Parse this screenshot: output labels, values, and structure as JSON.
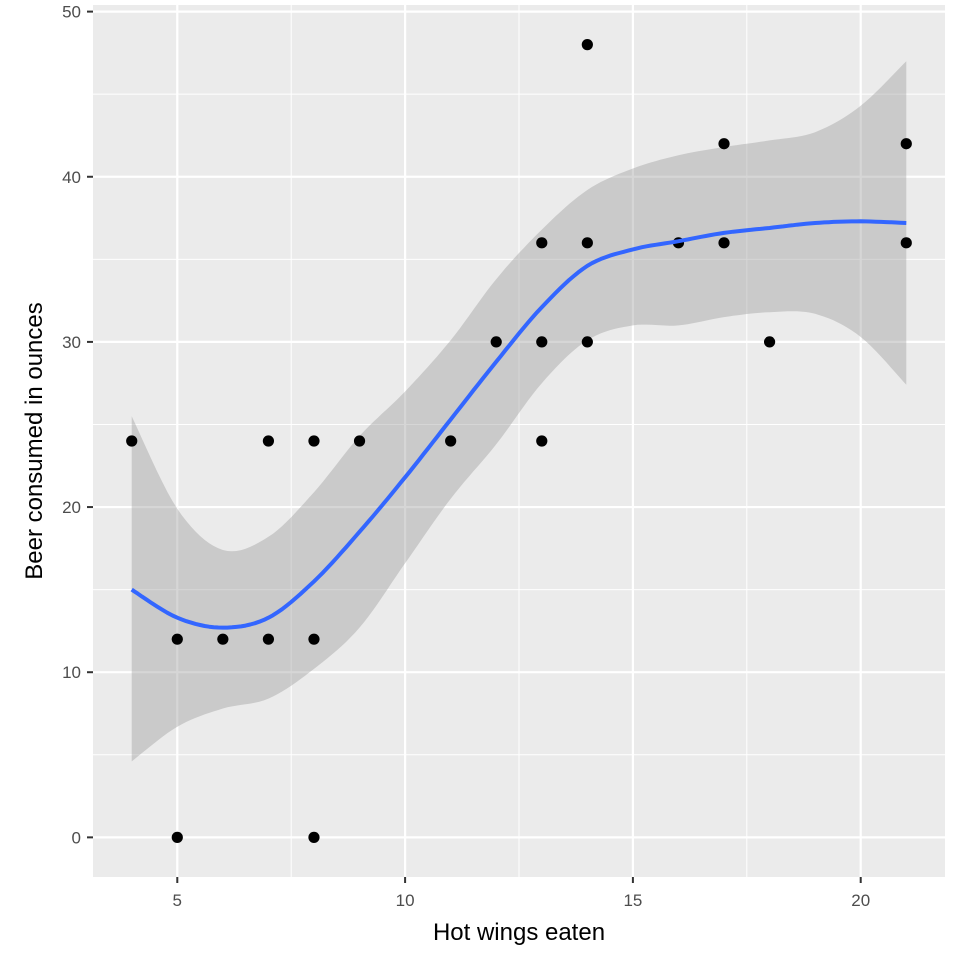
{
  "chart_data": {
    "type": "scatter",
    "title": "",
    "xlabel": "Hot wings eaten",
    "ylabel": "Beer consumed in ounces",
    "xlim": [
      3.15,
      21.85
    ],
    "ylim": [
      -2.4,
      50.4
    ],
    "x_ticks": [
      5,
      10,
      15,
      20
    ],
    "y_ticks": [
      0,
      10,
      20,
      30,
      40,
      50
    ],
    "x_tick_labels": [
      "5",
      "10",
      "15",
      "20"
    ],
    "y_tick_labels": [
      "0",
      "10",
      "20",
      "30",
      "40",
      "50"
    ],
    "grid": true,
    "panel_background": "#ebebeb",
    "grid_color": "#ffffff",
    "point_color": "#000000",
    "smooth_color": "#3366ff",
    "ribbon_color": "#999999",
    "points": [
      {
        "x": 4,
        "y": 24
      },
      {
        "x": 5,
        "y": 12
      },
      {
        "x": 5,
        "y": 0
      },
      {
        "x": 6,
        "y": 12
      },
      {
        "x": 7,
        "y": 24
      },
      {
        "x": 7,
        "y": 12
      },
      {
        "x": 8,
        "y": 24
      },
      {
        "x": 8,
        "y": 12
      },
      {
        "x": 8,
        "y": 0
      },
      {
        "x": 9,
        "y": 24
      },
      {
        "x": 11,
        "y": 24
      },
      {
        "x": 12,
        "y": 30
      },
      {
        "x": 13,
        "y": 36
      },
      {
        "x": 13,
        "y": 30
      },
      {
        "x": 13,
        "y": 24
      },
      {
        "x": 14,
        "y": 48
      },
      {
        "x": 14,
        "y": 36
      },
      {
        "x": 14,
        "y": 30
      },
      {
        "x": 16,
        "y": 36
      },
      {
        "x": 17,
        "y": 42
      },
      {
        "x": 17,
        "y": 36
      },
      {
        "x": 18,
        "y": 30
      },
      {
        "x": 21,
        "y": 42
      },
      {
        "x": 21,
        "y": 36
      }
    ],
    "smooth": {
      "x": [
        4,
        5,
        6,
        7,
        8,
        9,
        10,
        11,
        12,
        13,
        14,
        15,
        16,
        17,
        18,
        19,
        20,
        21
      ],
      "y": [
        15.0,
        13.3,
        12.7,
        13.3,
        15.5,
        18.5,
        21.8,
        25.3,
        28.8,
        32.1,
        34.6,
        35.6,
        36.1,
        36.6,
        36.9,
        37.2,
        37.3,
        37.2
      ],
      "lower": [
        4.6,
        6.7,
        7.8,
        8.4,
        10.2,
        12.7,
        16.6,
        20.5,
        23.8,
        27.5,
        30.1,
        31.0,
        31.0,
        31.5,
        31.8,
        31.7,
        30.3,
        27.4
      ],
      "upper": [
        25.5,
        19.9,
        17.4,
        18.2,
        20.9,
        24.3,
        27.0,
        30.1,
        33.8,
        36.8,
        39.2,
        40.5,
        41.3,
        41.8,
        42.2,
        42.7,
        44.3,
        47.0
      ]
    }
  }
}
